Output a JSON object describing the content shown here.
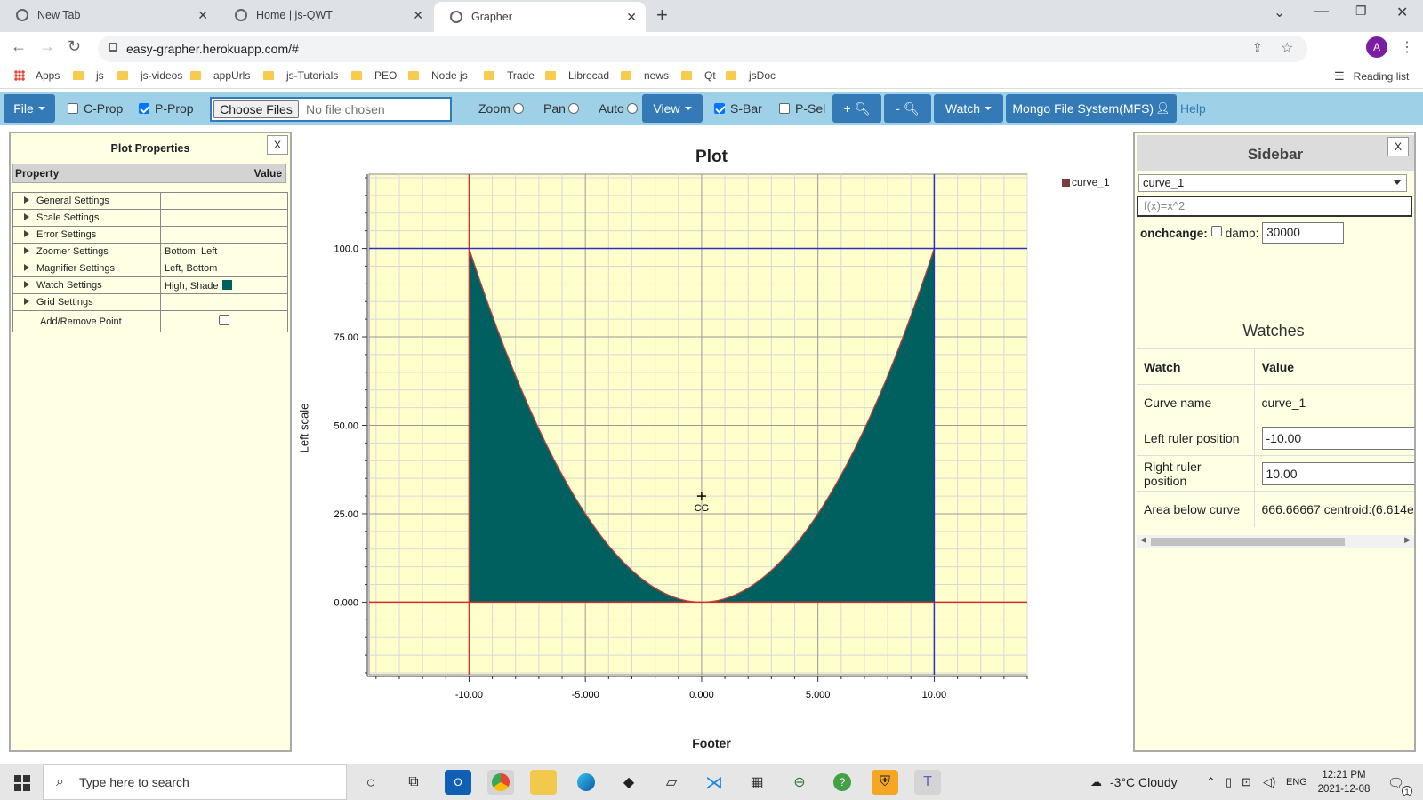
{
  "browser": {
    "tabs": [
      {
        "title": "New Tab"
      },
      {
        "title": "Home | js-QWT"
      },
      {
        "title": "Grapher"
      }
    ],
    "url": "easy-grapher.herokuapp.com/#",
    "profile_initial": "A",
    "bookmarks": [
      "Apps",
      "js",
      "js-videos",
      "appUrls",
      "js-Tutorials",
      "PEO",
      "Node js",
      "Trade",
      "Librecad",
      "news",
      "Qt",
      "jsDoc"
    ],
    "reading_list": "Reading list"
  },
  "toolbar": {
    "file": "File",
    "cprop": "C-Prop",
    "pprop": "P-Prop",
    "choose_files": "Choose Files",
    "no_file": "No file chosen",
    "zoom": "Zoom",
    "pan": "Pan",
    "auto": "Auto",
    "view": "View",
    "sbar": "S-Bar",
    "psel": "P-Sel",
    "zoom_in": "+",
    "zoom_out": "-",
    "watch": "Watch",
    "mfs": "Mongo File System(MFS)",
    "help": "Help"
  },
  "plot_properties": {
    "title": "Plot Properties",
    "close": "X",
    "col_property": "Property",
    "col_value": "Value",
    "rows": [
      {
        "name": "General Settings",
        "value": ""
      },
      {
        "name": "Scale Settings",
        "value": ""
      },
      {
        "name": "Error Settings",
        "value": ""
      },
      {
        "name": "Zoomer Settings",
        "value": "Bottom, Left"
      },
      {
        "name": "Magnifier Settings",
        "value": "Left, Bottom"
      },
      {
        "name": "Watch Settings",
        "value": "High; Shade"
      },
      {
        "name": "Grid Settings",
        "value": ""
      }
    ],
    "add_remove": "Add/Remove Point"
  },
  "chart_data": {
    "type": "area",
    "title": "Plot",
    "xlabel": "Footer",
    "ylabel": "Left scale",
    "function": "f(x)=x^2",
    "x_ticks": [
      "-10.00",
      "-5.000",
      "0.000",
      "5.000",
      "10.00"
    ],
    "y_ticks": [
      "0.000",
      "25.00",
      "50.00",
      "75.00",
      "100.0"
    ],
    "xlim": [
      -14.3,
      14
    ],
    "ylim": [
      -20.5,
      121
    ],
    "series": [
      {
        "name": "curve_1",
        "x_range": [
          -10,
          10
        ],
        "color": "#c04040",
        "fill": "#006060"
      }
    ],
    "rulers": {
      "left_x": -10,
      "right_x": 10
    },
    "marker_label": "CG",
    "centroid": {
      "x": 0,
      "y": 30
    },
    "legend_position": "right",
    "grid": true
  },
  "sidebar": {
    "title": "Sidebar",
    "close": "X",
    "curve_selected": "curve_1",
    "fn_placeholder": "f(x)=x^2",
    "onchange_label": "onchcange:",
    "damp_label": "damp:",
    "damp_value": "30000",
    "watches_title": "Watches",
    "watch_header": "Watch",
    "value_header": "Value",
    "watches": [
      {
        "label": "Curve name",
        "value": "curve_1"
      },
      {
        "label": "Left ruler position",
        "value": "-10.00"
      },
      {
        "label": "Right ruler position",
        "value": "10.00"
      },
      {
        "label": "Area below curve",
        "value": "666.66667 centroid:(6.614e"
      }
    ]
  },
  "taskbar": {
    "search_placeholder": "Type here to search",
    "weather": "-3°C  Cloudy",
    "lang": "ENG",
    "time": "12:21 PM",
    "date": "2021-12-08",
    "notif_count": "1"
  }
}
